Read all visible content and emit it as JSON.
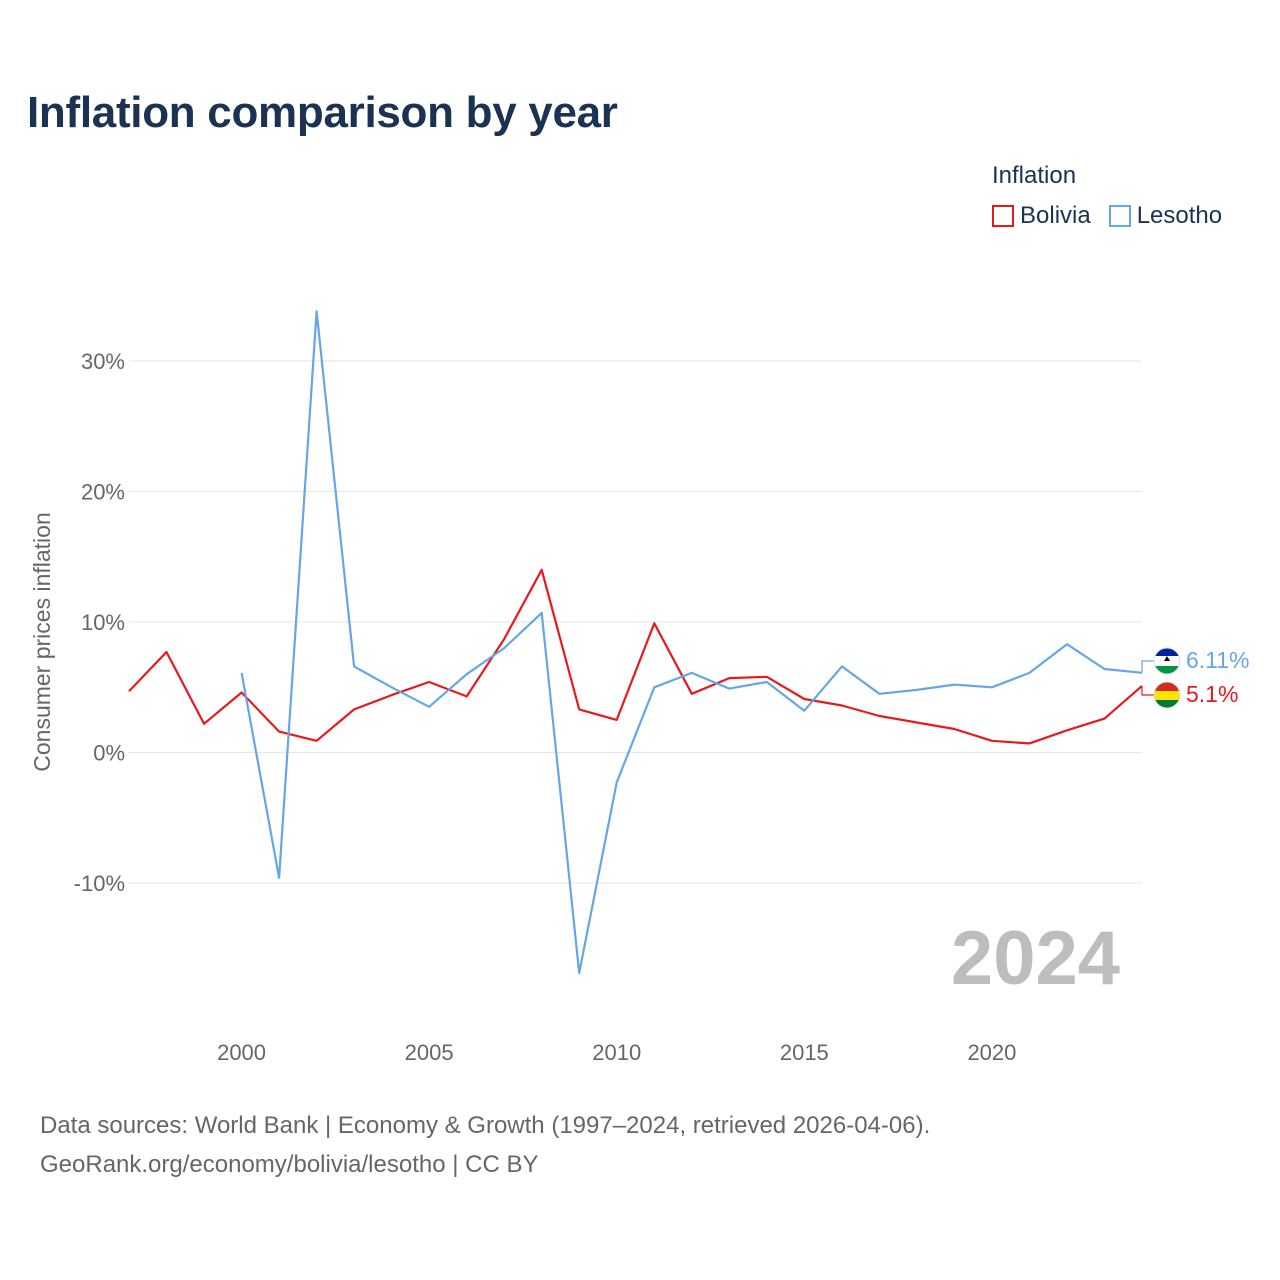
{
  "title": "Inflation comparison by year",
  "legend": {
    "title": "Inflation",
    "items": [
      {
        "label": "Bolivia",
        "color": "#e8191c"
      },
      {
        "label": "Lesotho",
        "color": "#64a6e6"
      }
    ]
  },
  "footer": {
    "line1": "Data sources: World Bank | Economy & Growth (1997–2024, retrieved 2026-04-06).",
    "line2": "GeoRank.org/economy/bolivia/lesotho | CC BY"
  },
  "chart_data": {
    "type": "line",
    "title": "Inflation comparison by year",
    "xlabel": "",
    "ylabel": "Consumer prices inflation",
    "xlim": [
      1997,
      2024
    ],
    "ylim": [
      -20,
      35
    ],
    "x_ticks": [
      2000,
      2005,
      2010,
      2015,
      2020
    ],
    "x_tick_labels": [
      "2000",
      "2005",
      "2010",
      "2015",
      "2020"
    ],
    "y_ticks": [
      30,
      20,
      10,
      0,
      -10
    ],
    "y_tick_labels": [
      "30%",
      "20%",
      "10%",
      "0%",
      "-10%"
    ],
    "grid": true,
    "legend_position": "top-right",
    "watermark": "2024",
    "series": [
      {
        "name": "Bolivia",
        "color": "#e8191c",
        "x": [
          1997,
          1998,
          1999,
          2000,
          2001,
          2002,
          2003,
          2004,
          2005,
          2006,
          2007,
          2008,
          2009,
          2010,
          2011,
          2012,
          2013,
          2014,
          2015,
          2016,
          2017,
          2018,
          2019,
          2020,
          2021,
          2022,
          2023,
          2024
        ],
        "values": [
          4.7,
          7.7,
          2.2,
          4.6,
          1.6,
          0.9,
          3.3,
          4.4,
          5.4,
          4.3,
          8.7,
          14.0,
          3.3,
          2.5,
          9.9,
          4.5,
          5.7,
          5.8,
          4.1,
          3.6,
          2.8,
          2.3,
          1.8,
          0.9,
          0.7,
          1.7,
          2.6,
          5.1
        ],
        "end_label": "5.1%"
      },
      {
        "name": "Lesotho",
        "color": "#64a6e6",
        "x": [
          2000,
          2001,
          2002,
          2003,
          2004,
          2005,
          2006,
          2007,
          2008,
          2009,
          2010,
          2011,
          2012,
          2013,
          2014,
          2015,
          2016,
          2017,
          2018,
          2019,
          2020,
          2021,
          2022,
          2023,
          2024
        ],
        "values": [
          6.1,
          -9.6,
          33.8,
          6.6,
          5.0,
          3.5,
          6.0,
          8.0,
          10.7,
          -16.9,
          -2.3,
          5.0,
          6.1,
          4.9,
          5.4,
          3.2,
          6.6,
          4.5,
          4.8,
          5.2,
          5.0,
          6.1,
          8.3,
          6.4,
          6.11
        ],
        "end_label": "6.11%"
      }
    ]
  }
}
